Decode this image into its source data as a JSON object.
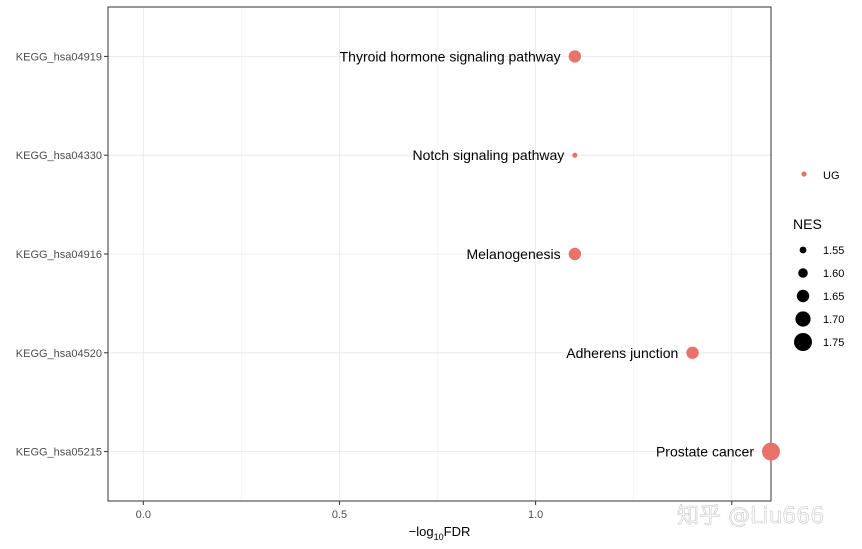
{
  "chart_data": {
    "type": "scatter",
    "xlabel_main": "−log",
    "xlabel_sub": "10",
    "xlabel_tail": "FDR",
    "xlim": [
      -0.09,
      1.6
    ],
    "x_ticks": [
      0.0,
      0.5,
      1.0,
      1.5
    ],
    "x_tick_labels": [
      "0.0",
      "0.5",
      "1.0",
      ""
    ],
    "categories": [
      "KEGG_hsa04919",
      "KEGG_hsa04330",
      "KEGG_hsa04916",
      "KEGG_hsa04520",
      "KEGG_hsa05215"
    ],
    "points": [
      {
        "id": "KEGG_hsa04919",
        "label": "Thyroid hormone signaling pathway",
        "x": 1.1,
        "nes": 1.65,
        "group": "UG"
      },
      {
        "id": "KEGG_hsa04330",
        "label": "Notch signaling pathway",
        "x": 1.1,
        "nes": 1.52,
        "group": "UG"
      },
      {
        "id": "KEGG_hsa04916",
        "label": "Melanogenesis",
        "x": 1.1,
        "nes": 1.65,
        "group": "UG"
      },
      {
        "id": "KEGG_hsa04520",
        "label": "Adherens junction",
        "x": 1.4,
        "nes": 1.65,
        "group": "UG"
      },
      {
        "id": "KEGG_hsa05215",
        "label": "Prostate cancer",
        "x": 1.6,
        "nes": 1.75,
        "group": "UG"
      }
    ],
    "color_legend": {
      "label": "UG",
      "color": "#E8736B"
    },
    "size_legend": {
      "title": "NES",
      "labels": [
        "1.55",
        "1.60",
        "1.65",
        "1.70",
        "1.75"
      ],
      "values": [
        1.55,
        1.6,
        1.65,
        1.7,
        1.75
      ]
    },
    "point_color": "#E8736B"
  },
  "watermark": "知乎 @Liu666"
}
